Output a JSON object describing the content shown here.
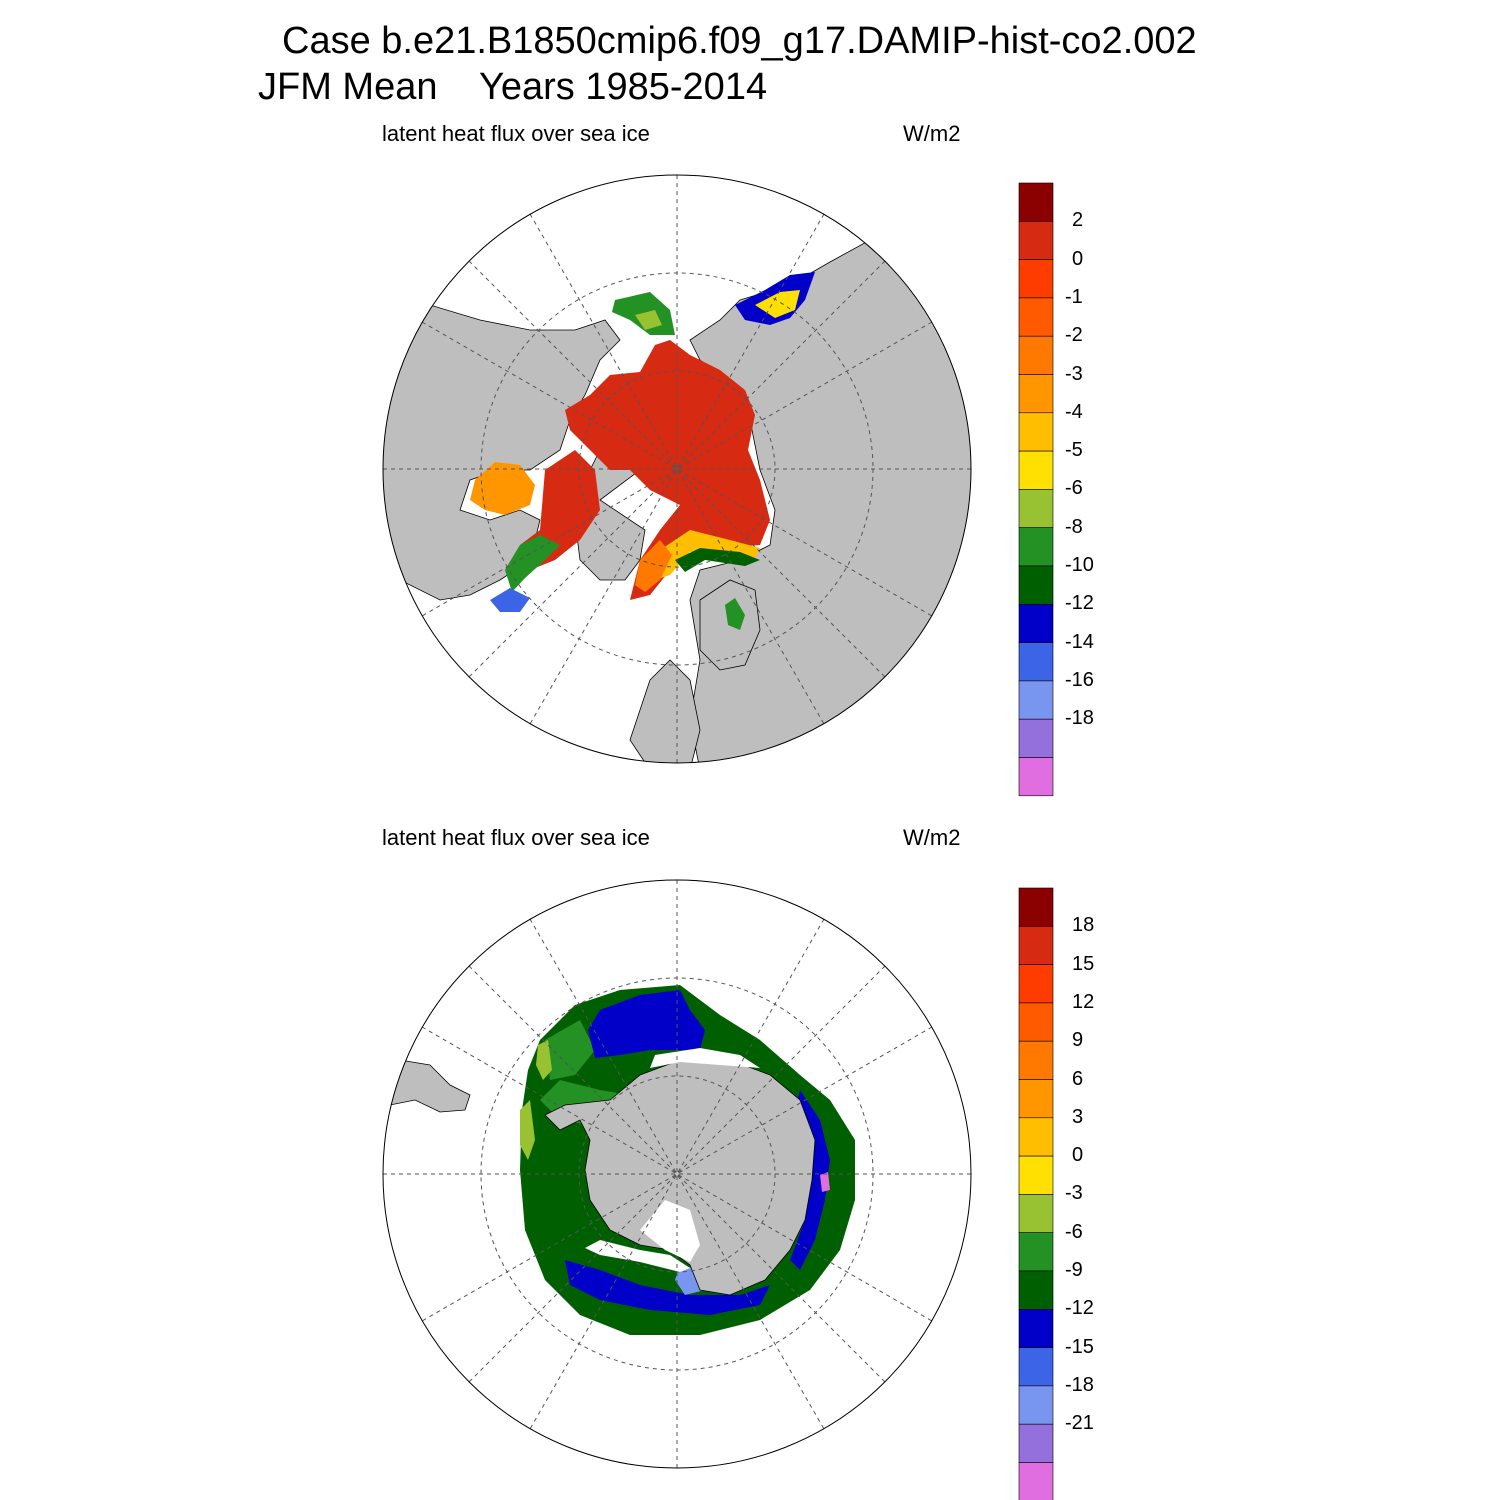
{
  "title": {
    "line1": "Case b.e21.B1850cmip6.f09_g17.DAMIP-hist-co2.002",
    "line2": "JFM Mean    Years 1985-2014"
  },
  "panels": [
    {
      "id": "north",
      "variable": "latent heat flux over sea ice",
      "units": "W/m2",
      "colorbar": {
        "colors": [
          "#8b0000",
          "#d62a12",
          "#ff3c00",
          "#ff5a00",
          "#ff7800",
          "#ff9600",
          "#ffbe00",
          "#ffe000",
          "#99c232",
          "#239123",
          "#005f00",
          "#0000c8",
          "#3c64e6",
          "#7896f0",
          "#9370db",
          "#e06ee0"
        ],
        "labels": [
          "2",
          "0",
          "-1",
          "-2",
          "-3",
          "-4",
          "-5",
          "-6",
          "-8",
          "-10",
          "-12",
          "-14",
          "-16",
          "-18"
        ]
      }
    },
    {
      "id": "south",
      "variable": "latent heat flux over sea ice",
      "units": "W/m2",
      "colorbar": {
        "colors": [
          "#8b0000",
          "#d62a12",
          "#ff3c00",
          "#ff5a00",
          "#ff7800",
          "#ff9600",
          "#ffbe00",
          "#ffe000",
          "#99c232",
          "#239123",
          "#005f00",
          "#0000c8",
          "#3c64e6",
          "#7896f0",
          "#9370db",
          "#e06ee0"
        ],
        "labels": [
          "18",
          "15",
          "12",
          "9",
          "6",
          "3",
          "0",
          "-3",
          "-6",
          "-9",
          "-12",
          "-15",
          "-18",
          "-21"
        ]
      }
    }
  ]
}
